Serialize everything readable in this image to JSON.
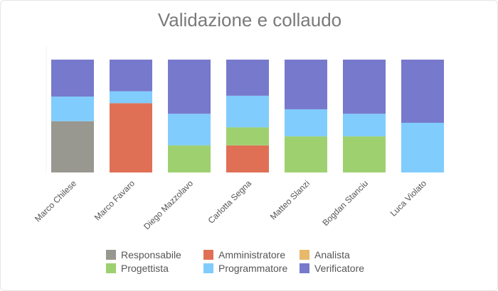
{
  "chart_data": {
    "type": "bar",
    "stacked": true,
    "normalized": true,
    "title": "Validazione e collaudo",
    "categories": [
      "Marco Chilese",
      "Marco Favaro",
      "Diego Mazzolavo",
      "Carlotta Segna",
      "Matteo Slanzi",
      "Bogdan Stanciu",
      "Luca Violato"
    ],
    "series": [
      {
        "name": "Responsabile",
        "color": "#989890",
        "values": [
          50,
          0,
          0,
          0,
          0,
          0,
          0
        ]
      },
      {
        "name": "Amministratore",
        "color": "#e07055",
        "values": [
          0,
          70,
          0,
          24,
          0,
          0,
          0
        ]
      },
      {
        "name": "Analista",
        "color": "#e8b96a",
        "values": [
          0,
          0,
          0,
          0,
          0,
          0,
          0
        ]
      },
      {
        "name": "Progettista",
        "color": "#9ed070",
        "values": [
          0,
          0,
          24,
          16,
          32,
          32,
          0
        ]
      },
      {
        "name": "Programmatore",
        "color": "#80ccfc",
        "values": [
          24,
          12,
          28,
          28,
          24,
          20,
          44
        ]
      },
      {
        "name": "Verificatore",
        "color": "#7779cc",
        "values": [
          36,
          32,
          48,
          32,
          44,
          48,
          56
        ]
      }
    ],
    "legend_position": "bottom",
    "grid": false
  }
}
